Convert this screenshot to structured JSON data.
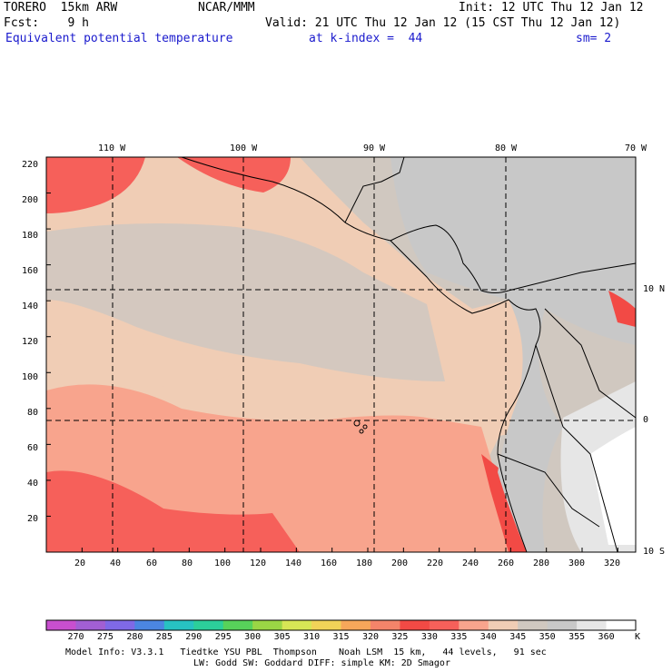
{
  "header": {
    "model": "TORERO  15km ARW",
    "org": "NCAR/MMM",
    "init": "Init: 12 UTC Thu 12 Jan 12",
    "fcst": "Fcst:    9 h",
    "valid": "Valid: 21 UTC Thu 12 Jan 12 (15 CST Thu 12 Jan 12)",
    "field": "Equivalent potential temperature",
    "level": "at k-index =  44",
    "smooth": "sm= 2"
  },
  "map": {
    "lon_labels": [
      "110 W",
      "100 W",
      "90 W",
      "80 W",
      "70 W"
    ],
    "lat_labels": [
      "10 N",
      "0",
      "10 S"
    ],
    "y_ticks": [
      "220",
      "200",
      "180",
      "160",
      "140",
      "120",
      "100",
      "80",
      "60",
      "40",
      "20"
    ],
    "x_ticks": [
      "20",
      "40",
      "60",
      "80",
      "100",
      "120",
      "140",
      "160",
      "180",
      "200",
      "220",
      "240",
      "260",
      "280",
      "300",
      "320"
    ],
    "grid_rows": 220,
    "grid_cols": 330
  },
  "colorbar": {
    "levels": [
      "270",
      "275",
      "280",
      "285",
      "290",
      "295",
      "300",
      "305",
      "310",
      "315",
      "320",
      "325",
      "330",
      "335",
      "340",
      "345",
      "350",
      "355",
      "360"
    ],
    "unit": "K",
    "colors": [
      "#c84fcf",
      "#a25fd3",
      "#7f69e6",
      "#4b86e2",
      "#27c2c2",
      "#2ccf9a",
      "#57d25a",
      "#9ad645",
      "#d7e655",
      "#f1d358",
      "#f7a75a",
      "#f4846a",
      "#f24a45",
      "#f6605a",
      "#f8a48d",
      "#f0cdb5",
      "#d0c8c0",
      "#c8c8c8",
      "#e6e6e6",
      "#ffffff"
    ]
  },
  "footer": {
    "line1": "Model Info: V3.3.1   Tiedtke YSU PBL  Thompson    Noah LSM  15 km,   44 levels,   91 sec",
    "line2": "LW: Godd SW: Goddard DIFF: simple KM: 2D Smagor"
  }
}
